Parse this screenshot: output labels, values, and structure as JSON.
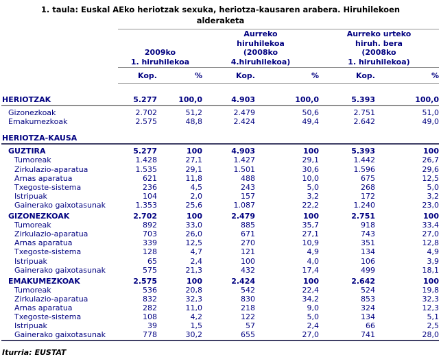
{
  "chart_data": {
    "type": "table",
    "title": "1. taula: Euskal AEko heriotzak sexuka, heriotza-kausaren arabera. Hiruhilekoen alderaketa",
    "column_groups": [
      {
        "label_lines": [
          "2009ko",
          "1. hiruhilekoa"
        ]
      },
      {
        "label_lines": [
          "Aurreko",
          "hiruhilekoa",
          "(2008ko",
          "4.hiruhilekoa)"
        ]
      },
      {
        "label_lines": [
          "Aurreko urteko",
          "hiruh. bera",
          "(2008ko",
          "1. hiruhilekoa)"
        ]
      }
    ],
    "sub_headers": [
      "Kop.",
      "%",
      "Kop.",
      "%",
      "Kop.",
      "%"
    ],
    "rows": [
      {
        "type": "section",
        "label": "HERIOTZAK",
        "values": [
          "5.277",
          "100,0",
          "4.903",
          "100,0",
          "5.393",
          "100,0"
        ],
        "rule_below": "gray"
      },
      {
        "type": "subrow",
        "label": "Gizonezkoak",
        "values": [
          "2.702",
          "51,2",
          "2.479",
          "50,6",
          "2.751",
          "51,0"
        ]
      },
      {
        "type": "subrow",
        "label": "Emakumezkoak",
        "values": [
          "2.575",
          "48,8",
          "2.424",
          "49,4",
          "2.642",
          "49,0"
        ]
      },
      {
        "type": "section",
        "label": "HERIOTZA-KAUSA",
        "values": [],
        "rule_below": "dark",
        "gap_before": true
      },
      {
        "type": "total",
        "label": "GUZTIRA",
        "values": [
          "5.277",
          "100",
          "4.903",
          "100",
          "5.393",
          "100"
        ]
      },
      {
        "type": "detail",
        "label": "Tumoreak",
        "values": [
          "1.428",
          "27,1",
          "1.427",
          "29,1",
          "1.442",
          "26,7"
        ]
      },
      {
        "type": "detail",
        "label": "Zirkulazio-aparatua",
        "values": [
          "1.535",
          "29,1",
          "1.501",
          "30,6",
          "1.596",
          "29,6"
        ]
      },
      {
        "type": "detail",
        "label": "Arnas aparatua",
        "values": [
          "621",
          "11,8",
          "488",
          "10,0",
          "675",
          "12,5"
        ]
      },
      {
        "type": "detail",
        "label": "Txegoste-sistema",
        "values": [
          "236",
          "4,5",
          "243",
          "5,0",
          "268",
          "5,0"
        ]
      },
      {
        "type": "detail",
        "label": "Istripuak",
        "values": [
          "104",
          "2,0",
          "157",
          "3,2",
          "172",
          "3,2"
        ]
      },
      {
        "type": "detail",
        "label": "Gainerako gaixotasunak",
        "values": [
          "1.353",
          "25,6",
          "1.087",
          "22,2",
          "1.240",
          "23,0"
        ]
      },
      {
        "type": "total",
        "label": "GIZONEZKOAK",
        "values": [
          "2.702",
          "100",
          "2.479",
          "100",
          "2.751",
          "100"
        ]
      },
      {
        "type": "detail",
        "label": "Tumoreak",
        "values": [
          "892",
          "33,0",
          "885",
          "35,7",
          "918",
          "33,4"
        ]
      },
      {
        "type": "detail",
        "label": "Zirkulazio-aparatua",
        "values": [
          "703",
          "26,0",
          "671",
          "27,1",
          "743",
          "27,0"
        ]
      },
      {
        "type": "detail",
        "label": "Arnas aparatua",
        "values": [
          "339",
          "12,5",
          "270",
          "10,9",
          "351",
          "12,8"
        ]
      },
      {
        "type": "detail",
        "label": "Txegoste-sistema",
        "values": [
          "128",
          "4,7",
          "121",
          "4,9",
          "134",
          "4,9"
        ]
      },
      {
        "type": "detail",
        "label": "Istripuak",
        "values": [
          "65",
          "2,4",
          "100",
          "4,0",
          "106",
          "3,9"
        ]
      },
      {
        "type": "detail",
        "label": "Gainerako gaixotasunak",
        "values": [
          "575",
          "21,3",
          "432",
          "17,4",
          "499",
          "18,1"
        ]
      },
      {
        "type": "total",
        "label": "EMAKUMEZKOAK",
        "values": [
          "2.575",
          "100",
          "2.424",
          "100",
          "2.642",
          "100"
        ]
      },
      {
        "type": "detail",
        "label": "Tumoreak",
        "values": [
          "536",
          "20,8",
          "542",
          "22,4",
          "524",
          "19,8"
        ]
      },
      {
        "type": "detail",
        "label": "Zirkulazio-aparatua",
        "values": [
          "832",
          "32,3",
          "830",
          "34,2",
          "853",
          "32,3"
        ]
      },
      {
        "type": "detail",
        "label": "Arnas aparatua",
        "values": [
          "282",
          "11,0",
          "218",
          "9,0",
          "324",
          "12,3"
        ]
      },
      {
        "type": "detail",
        "label": "Txegoste-sistema",
        "values": [
          "108",
          "4,2",
          "122",
          "5,0",
          "134",
          "5,1"
        ]
      },
      {
        "type": "detail",
        "label": "Istripuak",
        "values": [
          "39",
          "1,5",
          "57",
          "2,4",
          "66",
          "2,5"
        ]
      },
      {
        "type": "detail",
        "label": "Gainerako gaixotasunak",
        "values": [
          "778",
          "30,2",
          "655",
          "27,0",
          "741",
          "28,0"
        ]
      }
    ],
    "source": "Iturria: EUSTAT"
  },
  "colors": {
    "text_navy": "#000080",
    "rule_gray": "#8f8f8f",
    "rule_dark": "#3f3f66"
  }
}
